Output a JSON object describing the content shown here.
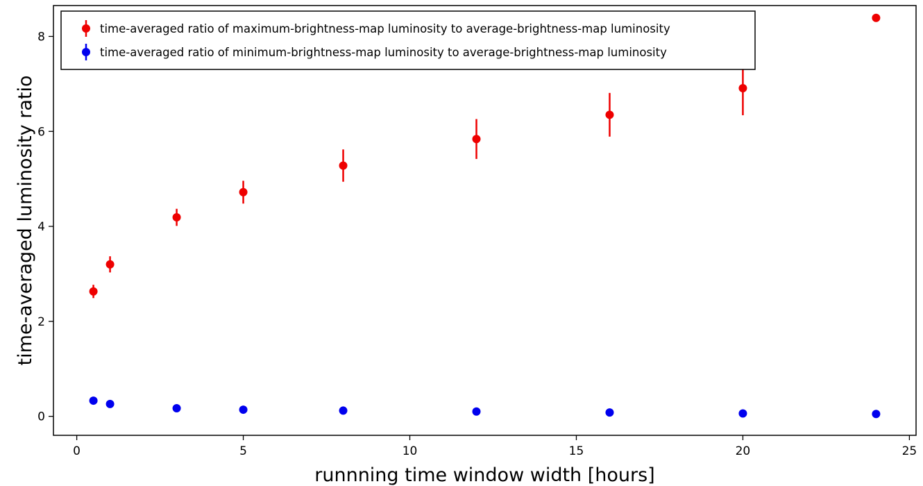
{
  "chart_data": {
    "type": "scatter",
    "xlabel": "runnning time window width [hours]",
    "ylabel": "time-averaged luminosity ratio",
    "xlim": [
      -0.7,
      25.2
    ],
    "ylim": [
      -0.4,
      8.65
    ],
    "xticks": [
      0,
      5,
      10,
      15,
      20,
      25
    ],
    "yticks": [
      0,
      2,
      4,
      6,
      8
    ],
    "grid": false,
    "legend_position": "top-left",
    "series": [
      {
        "name": "time-averaged ratio of maximum-brightness-map luminosity to average-brightness-map luminosity",
        "color": "#ee0000",
        "x": [
          0.5,
          1,
          3,
          5,
          8,
          12,
          16,
          20,
          24
        ],
        "y": [
          2.63,
          3.2,
          4.19,
          4.72,
          5.28,
          5.84,
          6.35,
          6.91,
          8.39
        ],
        "yerr": [
          0.14,
          0.17,
          0.18,
          0.24,
          0.34,
          0.42,
          0.46,
          0.57,
          0
        ]
      },
      {
        "name": "time-averaged ratio of minimum-brightness-map luminosity to average-brightness-map luminosity",
        "color": "#0000ee",
        "x": [
          0.5,
          1,
          3,
          5,
          8,
          12,
          16,
          20,
          24
        ],
        "y": [
          0.33,
          0.26,
          0.17,
          0.14,
          0.12,
          0.1,
          0.08,
          0.06,
          0.05
        ],
        "yerr": [
          0,
          0,
          0,
          0,
          0,
          0,
          0,
          0,
          0
        ]
      }
    ]
  }
}
